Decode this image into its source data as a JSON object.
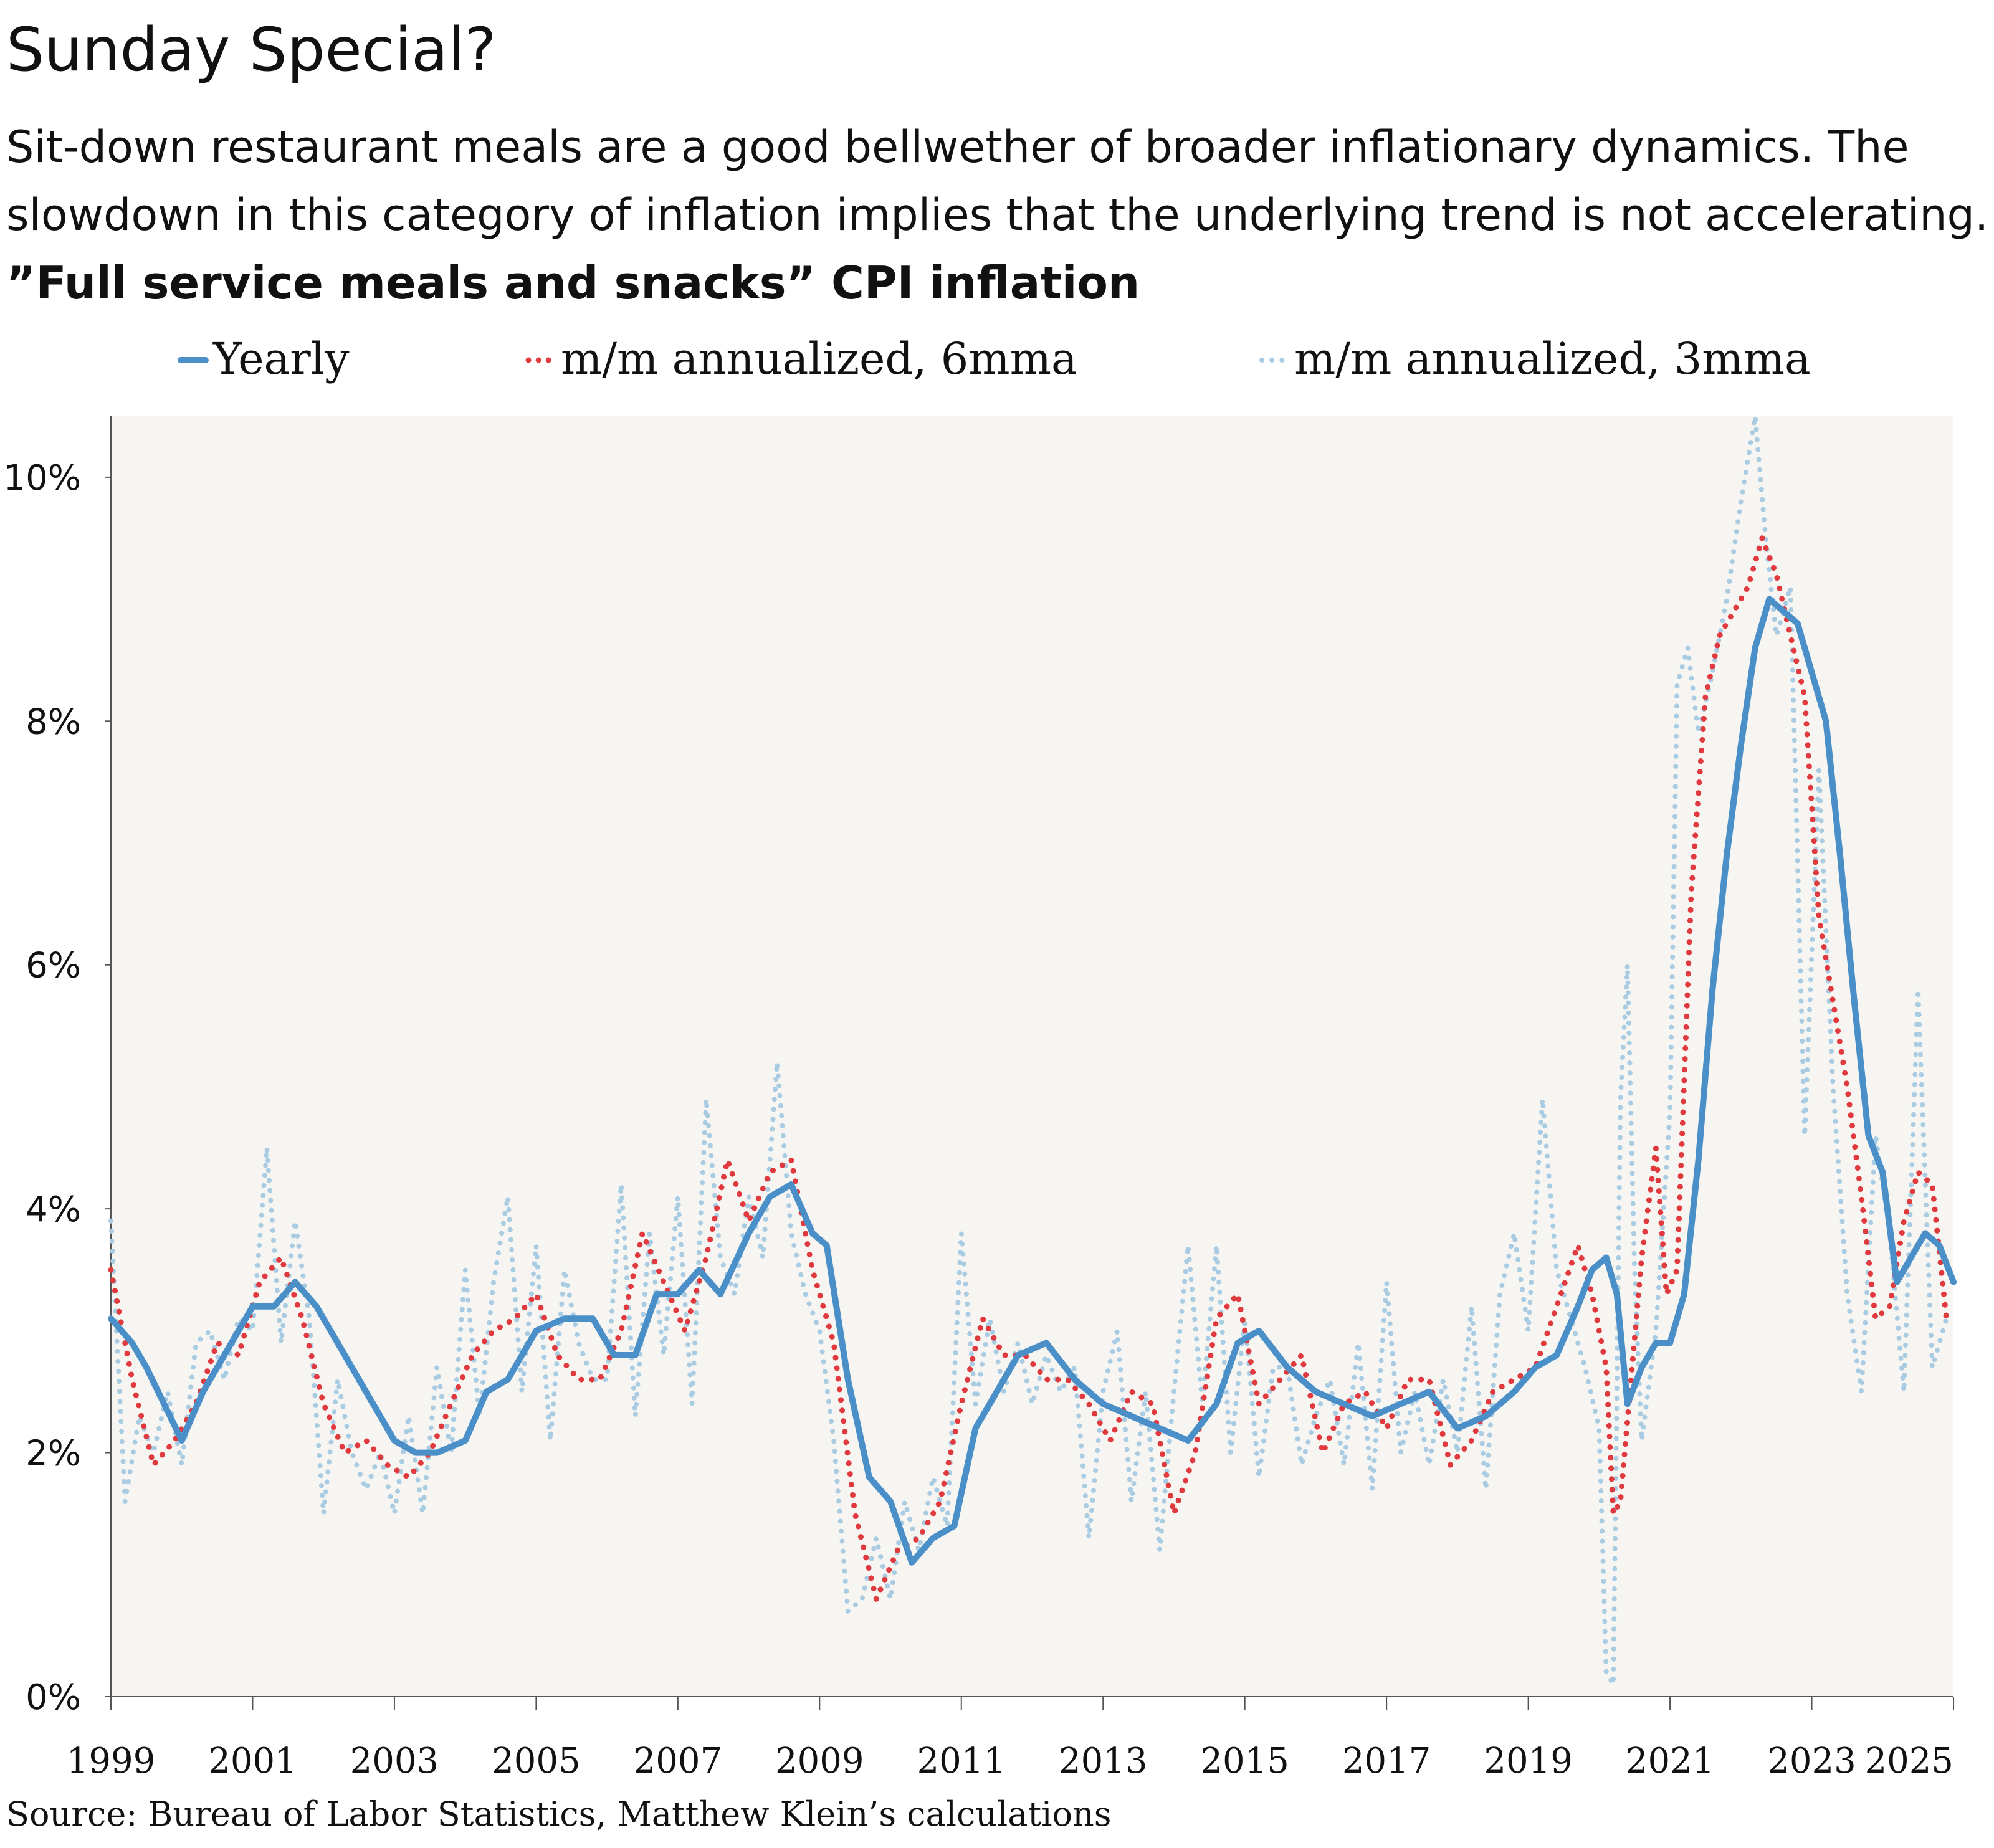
{
  "title": "Sunday Special?",
  "subtitle_lines": [
    "Sit-down restaurant meals are a good bellwether of broader inflationary dynamics. The",
    "slowdown in this category of inflation implies that the underlying trend is not accelerating."
  ],
  "source": "Source: Bureau of Labor Statistics, Matthew Klein’s calculations",
  "colors": {
    "yearly": "#4a8fc8",
    "mma6": "#e0393e",
    "mma3": "#a9cce3",
    "plot_bg": "#f6f5f2"
  },
  "chart_data": {
    "type": "line",
    "title": "”Full service meals and snacks” CPI inflation",
    "xlim": [
      1999,
      2025
    ],
    "ylim": [
      0,
      10.5
    ],
    "x_ticks": [
      1999,
      2001,
      2003,
      2005,
      2007,
      2009,
      2011,
      2013,
      2015,
      2017,
      2019,
      2021,
      2023,
      2025
    ],
    "y_ticks": [
      {
        "value": 0,
        "label": "0%"
      },
      {
        "value": 2,
        "label": "2%"
      },
      {
        "value": 4,
        "label": "4%"
      },
      {
        "value": 6,
        "label": "6%"
      },
      {
        "value": 8,
        "label": "8%"
      },
      {
        "value": 10,
        "label": "10%"
      }
    ],
    "legend_position": "top",
    "series": [
      {
        "name": "Yearly",
        "style": "solid",
        "x": [
          1999.0,
          1999.3,
          1999.5,
          1999.75,
          2000.0,
          2000.3,
          2000.6,
          2001.0,
          2001.3,
          2001.6,
          2001.9,
          2002.3,
          2002.6,
          2003.0,
          2003.3,
          2003.6,
          2004.0,
          2004.3,
          2004.6,
          2005.0,
          2005.4,
          2005.8,
          2006.1,
          2006.4,
          2006.7,
          2007.0,
          2007.3,
          2007.6,
          2008.0,
          2008.3,
          2008.6,
          2008.9,
          2009.1,
          2009.4,
          2009.7,
          2010.0,
          2010.3,
          2010.6,
          2010.9,
          2011.2,
          2011.5,
          2011.8,
          2012.2,
          2012.6,
          2013.0,
          2013.4,
          2013.8,
          2014.2,
          2014.6,
          2014.9,
          2015.2,
          2015.6,
          2016.0,
          2016.4,
          2016.8,
          2017.2,
          2017.6,
          2018.0,
          2018.4,
          2018.8,
          2019.1,
          2019.4,
          2019.7,
          2019.9,
          2020.1,
          2020.25,
          2020.4,
          2020.6,
          2020.8,
          2021.0,
          2021.2,
          2021.4,
          2021.6,
          2021.8,
          2022.0,
          2022.2,
          2022.4,
          2022.6,
          2022.8,
          2023.0,
          2023.2,
          2023.4,
          2023.6,
          2023.8,
          2024.0,
          2024.2,
          2024.4,
          2024.6,
          2024.8,
          2025.0
        ],
        "y": [
          3.1,
          2.9,
          2.7,
          2.4,
          2.1,
          2.5,
          2.8,
          3.2,
          3.2,
          3.4,
          3.2,
          2.8,
          2.5,
          2.1,
          2.0,
          2.0,
          2.1,
          2.5,
          2.6,
          3.0,
          3.1,
          3.1,
          2.8,
          2.8,
          3.3,
          3.3,
          3.5,
          3.3,
          3.8,
          4.1,
          4.2,
          3.8,
          3.7,
          2.6,
          1.8,
          1.6,
          1.1,
          1.3,
          1.4,
          2.2,
          2.5,
          2.8,
          2.9,
          2.6,
          2.4,
          2.3,
          2.2,
          2.1,
          2.4,
          2.9,
          3.0,
          2.7,
          2.5,
          2.4,
          2.3,
          2.4,
          2.5,
          2.2,
          2.3,
          2.5,
          2.7,
          2.8,
          3.2,
          3.5,
          3.6,
          3.3,
          2.4,
          2.7,
          2.9,
          2.9,
          3.3,
          4.4,
          5.8,
          6.9,
          7.8,
          8.6,
          9.0,
          8.9,
          8.8,
          8.4,
          8.0,
          6.9,
          5.7,
          4.6,
          4.3,
          3.4,
          3.6,
          3.8,
          3.7,
          3.4
        ]
      },
      {
        "name": "m/m annualized, 6mma",
        "style": "dotted",
        "x": [
          1999.0,
          1999.3,
          1999.6,
          1999.9,
          2000.2,
          2000.5,
          2000.8,
          2001.1,
          2001.4,
          2001.7,
          2002.0,
          2002.3,
          2002.6,
          2002.9,
          2003.2,
          2003.5,
          2003.8,
          2004.1,
          2004.4,
          2004.7,
          2005.0,
          2005.3,
          2005.6,
          2005.9,
          2006.2,
          2006.5,
          2006.8,
          2007.1,
          2007.4,
          2007.7,
          2008.0,
          2008.3,
          2008.6,
          2008.9,
          2009.2,
          2009.5,
          2009.8,
          2010.1,
          2010.4,
          2010.7,
          2011.0,
          2011.3,
          2011.6,
          2011.9,
          2012.2,
          2012.5,
          2012.8,
          2013.1,
          2013.4,
          2013.7,
          2014.0,
          2014.3,
          2014.6,
          2014.9,
          2015.2,
          2015.5,
          2015.8,
          2016.1,
          2016.4,
          2016.7,
          2017.0,
          2017.3,
          2017.6,
          2017.9,
          2018.2,
          2018.5,
          2018.8,
          2019.1,
          2019.4,
          2019.7,
          2019.9,
          2020.1,
          2020.2,
          2020.3,
          2020.45,
          2020.6,
          2020.8,
          2020.95,
          2021.1,
          2021.3,
          2021.5,
          2021.7,
          2021.9,
          2022.1,
          2022.3,
          2022.5,
          2022.7,
          2022.9,
          2023.1,
          2023.3,
          2023.5,
          2023.7,
          2023.9,
          2024.1,
          2024.3,
          2024.5,
          2024.7,
          2024.9
        ],
        "y": [
          3.5,
          2.6,
          1.9,
          2.1,
          2.4,
          2.9,
          2.8,
          3.4,
          3.6,
          3.1,
          2.4,
          2.0,
          2.1,
          1.9,
          1.8,
          2.0,
          2.4,
          2.8,
          3.0,
          3.1,
          3.3,
          2.8,
          2.6,
          2.6,
          3.0,
          3.8,
          3.4,
          3.0,
          3.6,
          4.4,
          3.9,
          4.3,
          4.4,
          3.5,
          2.9,
          1.5,
          0.8,
          1.2,
          1.3,
          1.6,
          2.4,
          3.1,
          2.8,
          2.8,
          2.6,
          2.6,
          2.4,
          2.1,
          2.5,
          2.4,
          1.5,
          2.0,
          3.1,
          3.3,
          2.4,
          2.6,
          2.8,
          2.0,
          2.4,
          2.5,
          2.2,
          2.6,
          2.6,
          1.9,
          2.1,
          2.5,
          2.6,
          2.7,
          3.2,
          3.7,
          3.3,
          2.7,
          1.5,
          1.6,
          2.6,
          3.6,
          4.5,
          3.3,
          3.5,
          6.6,
          8.2,
          8.7,
          8.9,
          9.1,
          9.5,
          9.2,
          8.7,
          8.2,
          6.4,
          5.7,
          5.0,
          4.1,
          3.1,
          3.2,
          3.9,
          4.3,
          4.2,
          3.1
        ]
      },
      {
        "name": "m/m annualized, 3mma",
        "style": "dotted",
        "x": [
          1999.0,
          1999.2,
          1999.4,
          1999.6,
          1999.8,
          2000.0,
          2000.2,
          2000.4,
          2000.6,
          2000.8,
          2001.0,
          2001.2,
          2001.4,
          2001.6,
          2001.8,
          2002.0,
          2002.2,
          2002.4,
          2002.6,
          2002.8,
          2003.0,
          2003.2,
          2003.4,
          2003.6,
          2003.8,
          2004.0,
          2004.2,
          2004.4,
          2004.6,
          2004.8,
          2005.0,
          2005.2,
          2005.4,
          2005.6,
          2005.8,
          2006.0,
          2006.2,
          2006.4,
          2006.6,
          2006.8,
          2007.0,
          2007.2,
          2007.4,
          2007.6,
          2007.8,
          2008.0,
          2008.2,
          2008.4,
          2008.6,
          2008.8,
          2009.0,
          2009.2,
          2009.4,
          2009.6,
          2009.8,
          2010.0,
          2010.2,
          2010.4,
          2010.6,
          2010.8,
          2011.0,
          2011.2,
          2011.4,
          2011.6,
          2011.8,
          2012.0,
          2012.2,
          2012.4,
          2012.6,
          2012.8,
          2013.0,
          2013.2,
          2013.4,
          2013.6,
          2013.8,
          2014.0,
          2014.2,
          2014.4,
          2014.6,
          2014.8,
          2015.0,
          2015.2,
          2015.4,
          2015.6,
          2015.8,
          2016.0,
          2016.2,
          2016.4,
          2016.6,
          2016.8,
          2017.0,
          2017.2,
          2017.4,
          2017.6,
          2017.8,
          2018.0,
          2018.2,
          2018.4,
          2018.6,
          2018.8,
          2019.0,
          2019.2,
          2019.4,
          2019.6,
          2019.8,
          2020.0,
          2020.1,
          2020.2,
          2020.3,
          2020.4,
          2020.5,
          2020.6,
          2020.8,
          2021.0,
          2021.1,
          2021.25,
          2021.4,
          2021.6,
          2021.8,
          2022.0,
          2022.2,
          2022.35,
          2022.5,
          2022.7,
          2022.9,
          2023.1,
          2023.3,
          2023.5,
          2023.7,
          2023.9,
          2024.1,
          2024.3,
          2024.5,
          2024.7,
          2024.9
        ],
        "y": [
          3.9,
          1.6,
          2.3,
          2.0,
          2.5,
          1.9,
          2.9,
          3.0,
          2.6,
          3.1,
          3.0,
          4.5,
          2.9,
          3.9,
          3.1,
          1.5,
          2.6,
          2.0,
          1.7,
          2.0,
          1.5,
          2.3,
          1.5,
          2.7,
          2.0,
          3.5,
          2.3,
          3.4,
          4.1,
          2.5,
          3.7,
          2.1,
          3.5,
          2.9,
          2.6,
          2.6,
          4.2,
          2.3,
          3.8,
          2.8,
          4.1,
          2.4,
          4.9,
          3.6,
          3.3,
          4.1,
          3.6,
          5.2,
          3.8,
          3.3,
          3.0,
          2.1,
          0.7,
          0.8,
          1.3,
          0.8,
          1.6,
          1.2,
          1.8,
          1.4,
          3.8,
          2.4,
          3.1,
          2.5,
          2.9,
          2.4,
          2.8,
          2.5,
          2.7,
          1.3,
          2.5,
          3.0,
          1.6,
          2.5,
          1.2,
          2.5,
          3.7,
          2.4,
          3.7,
          2.0,
          3.1,
          1.8,
          2.7,
          2.7,
          1.9,
          2.3,
          2.6,
          1.9,
          2.9,
          1.7,
          3.4,
          2.0,
          2.5,
          1.9,
          2.6,
          2.0,
          3.2,
          1.7,
          3.3,
          3.8,
          3.0,
          4.9,
          3.5,
          3.1,
          2.7,
          2.2,
          0.2,
          0.1,
          4.9,
          6.0,
          3.5,
          2.1,
          3.0,
          4.8,
          8.3,
          8.6,
          7.9,
          8.4,
          9.0,
          9.8,
          10.5,
          9.5,
          8.7,
          9.1,
          4.6,
          7.6,
          5.0,
          3.3,
          2.5,
          4.6,
          3.8,
          2.5,
          5.8,
          2.7,
          3.1
        ]
      }
    ]
  }
}
